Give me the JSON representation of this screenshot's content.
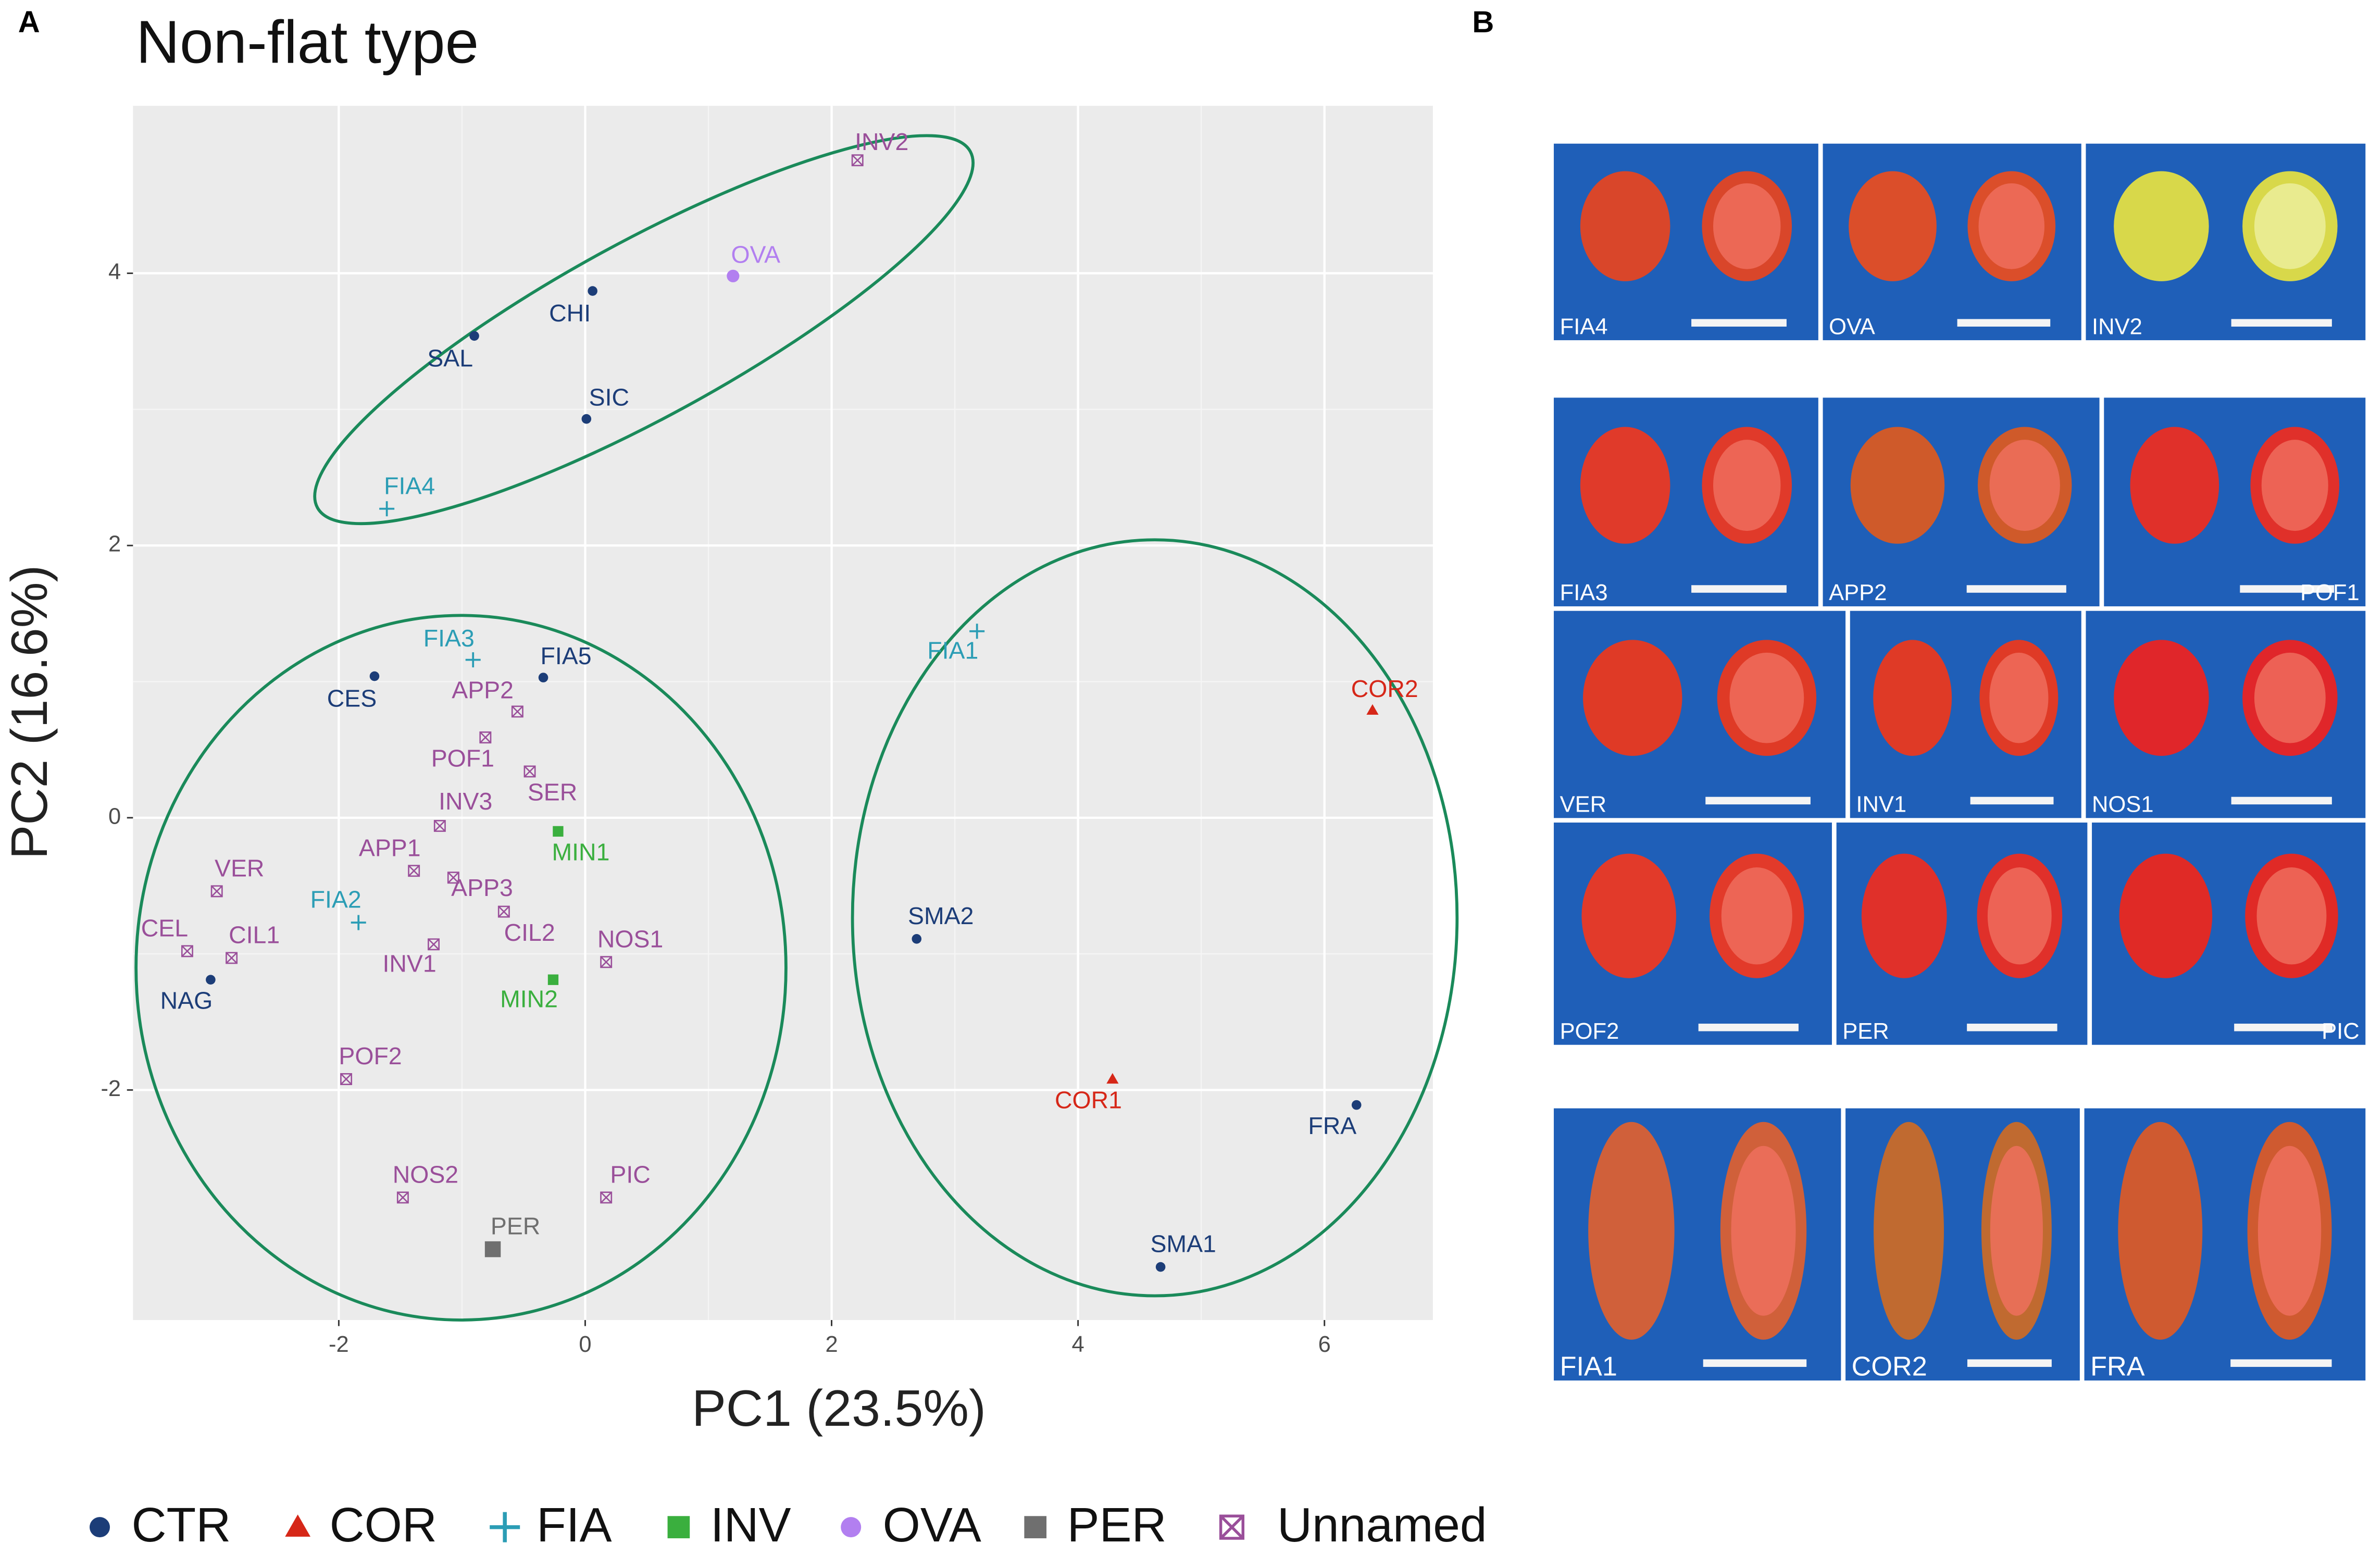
{
  "panel_labels": [
    "A",
    "B"
  ],
  "chart_data": {
    "type": "scatter",
    "title": "Non-flat type",
    "xlabel": "PC1 (23.5%)",
    "ylabel": "PC2 (16.6%)",
    "xlim": [
      -3.67,
      6.88
    ],
    "ylim": [
      -3.69,
      5.23
    ],
    "xticks": [
      -2,
      0,
      2,
      4,
      6
    ],
    "yticks": [
      -2,
      0,
      2,
      4
    ],
    "grid": true,
    "legend": "bottom",
    "series": [
      {
        "name": "CTR",
        "color": "#1c3d78",
        "marker": "circle",
        "labels": [
          "CHI",
          "SAL",
          "SIC",
          "CES",
          "FIA5",
          "NAG",
          "SMA2",
          "FRA",
          "SMA1"
        ],
        "x": [
          0.06,
          -0.9,
          0.01,
          -1.71,
          -0.34,
          -3.04,
          2.69,
          6.26,
          4.67
        ],
        "values": [
          3.87,
          3.54,
          2.93,
          1.04,
          1.03,
          -1.19,
          -0.89,
          -2.11,
          -3.3
        ]
      },
      {
        "name": "COR",
        "color": "#d62718",
        "marker": "triangle",
        "labels": [
          "COR2",
          "COR1"
        ],
        "x": [
          6.39,
          4.28
        ],
        "values": [
          0.79,
          -1.92
        ]
      },
      {
        "name": "FIA",
        "color": "#2b9db5",
        "marker": "plus",
        "labels": [
          "FIA4",
          "FIA3",
          "FIA2",
          "FIA1"
        ],
        "x": [
          -1.61,
          -0.91,
          -1.84,
          3.18
        ],
        "values": [
          2.27,
          1.16,
          -0.77,
          1.37
        ]
      },
      {
        "name": "INV",
        "color": "#3aaf3e",
        "marker": "square",
        "labels": [
          "MIN1",
          "MIN2"
        ],
        "x": [
          -0.22,
          -0.26
        ],
        "values": [
          -0.1,
          -1.19
        ]
      },
      {
        "name": "OVA",
        "color": "#b27ff0",
        "marker": "circle",
        "labels": [
          "OVA"
        ],
        "x": [
          1.2
        ],
        "values": [
          3.98
        ]
      },
      {
        "name": "PER",
        "color": "#6f6f6f",
        "marker": "square",
        "labels": [
          "PER"
        ],
        "x": [
          -0.75
        ],
        "values": [
          -3.17
        ]
      },
      {
        "name": "Unnamed",
        "color": "#9a4f9a",
        "marker": "boxx",
        "labels": [
          "INV2",
          "APP2",
          "POF1",
          "SER",
          "INV3",
          "APP1",
          "APP3",
          "VER",
          "CIL2",
          "CEL",
          "CIL1",
          "INV1",
          "NOS1",
          "POF2",
          "NOS2",
          "PIC"
        ],
        "x": [
          2.21,
          -0.55,
          -0.81,
          -0.45,
          -1.18,
          -1.39,
          -1.07,
          -2.99,
          -0.66,
          -3.23,
          -2.87,
          -1.23,
          0.17,
          -1.94,
          -1.48,
          0.17
        ],
        "values": [
          4.83,
          0.78,
          0.59,
          0.34,
          -0.06,
          -0.39,
          -0.44,
          -0.54,
          -0.69,
          -0.98,
          -1.03,
          -0.93,
          -1.06,
          -1.92,
          -2.79,
          -2.79
        ]
      }
    ]
  },
  "panel_b": {
    "photos": [
      "FIA4",
      "OVA",
      "INV2",
      "FIA3",
      "APP2",
      "POF1",
      "VER",
      "INV1",
      "NOS1",
      "POF2",
      "PER",
      "PIC",
      "FIA1",
      "COR2",
      "FRA"
    ]
  }
}
